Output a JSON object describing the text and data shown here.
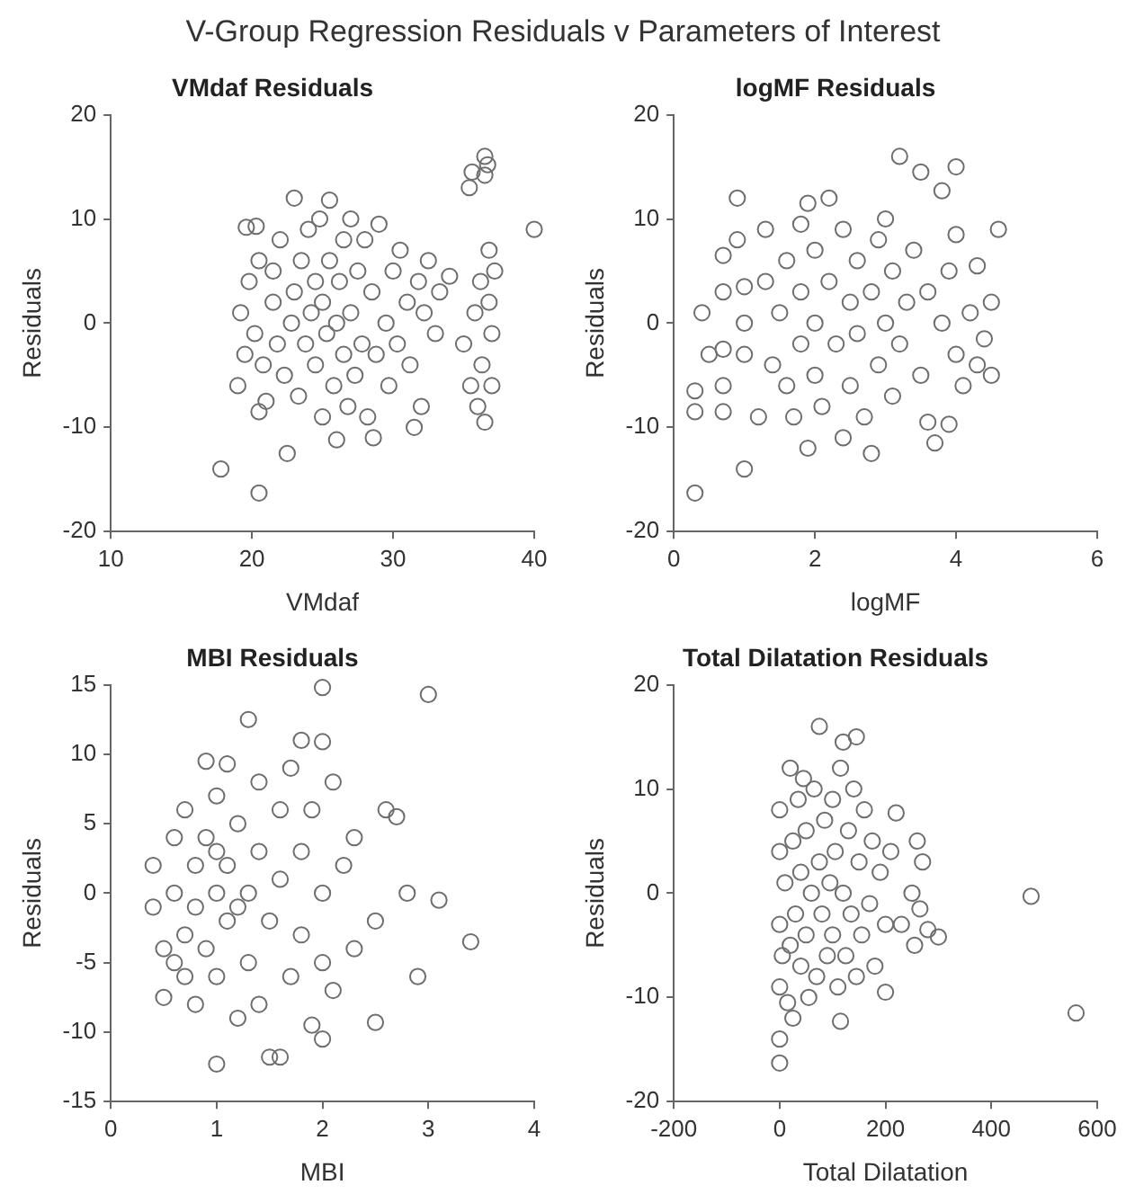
{
  "chart_data": [
    {
      "type": "scatter",
      "title": "VMdaf Residuals",
      "xlabel": "VMdaf",
      "ylabel": "Residuals",
      "annotations": [
        "V-Group Regression Residuals v Parameters of Interest"
      ],
      "color": "#6e6e6e",
      "marker": "circle",
      "xlim": [
        10,
        40
      ],
      "xticks": [
        10,
        20,
        30,
        40
      ],
      "ylim": [
        -20,
        20
      ],
      "yticks": [
        -20,
        -10,
        0,
        10,
        20
      ],
      "x": [
        17.8,
        20.5,
        19,
        19.5,
        19.2,
        19.8,
        19.6,
        20.3,
        20.5,
        20.2,
        20.8,
        21,
        20.5,
        21.5,
        21.8,
        21.5,
        22,
        22.3,
        22.5,
        22.8,
        23,
        23,
        23.3,
        23.5,
        23.8,
        24,
        24.2,
        24.5,
        24.5,
        24.8,
        25,
        25,
        25.3,
        25.5,
        25.5,
        25.8,
        26,
        26,
        26.2,
        26.5,
        26.5,
        26.8,
        27,
        27,
        27.3,
        27.5,
        27.8,
        28,
        28.2,
        28.5,
        28.6,
        28.8,
        29,
        29.5,
        29.7,
        30,
        30.3,
        30.5,
        31,
        31.2,
        31.5,
        31.8,
        32,
        32.2,
        32.5,
        33,
        33.3,
        34,
        35,
        35.4,
        35.6,
        35.5,
        35.8,
        36,
        36.2,
        36.3,
        36.5,
        36.5,
        36.5,
        36.7,
        36.8,
        36.8,
        37,
        37.2,
        37,
        40
      ],
      "values": [
        -14,
        -16.3,
        -6,
        -3,
        1,
        4,
        9.2,
        9.3,
        6,
        -1,
        -4,
        -7.5,
        -8.5,
        2,
        -2,
        5,
        8,
        -5,
        -12.5,
        0,
        3,
        12,
        -7,
        6,
        -2,
        9,
        1,
        -4,
        4,
        10,
        -9,
        2,
        -1,
        11.8,
        6,
        -6,
        -11.2,
        0,
        4,
        -3,
        8,
        -8,
        1,
        10,
        -5,
        5,
        -2,
        8,
        -9,
        3,
        -11,
        -3,
        9.5,
        0,
        -6,
        5,
        -2,
        7,
        2,
        -4,
        -10,
        4,
        -8,
        1,
        6,
        -1,
        3,
        4.5,
        -2,
        13,
        14.5,
        -6,
        1,
        -8,
        4,
        -4,
        16,
        14.2,
        -9.5,
        15.2,
        7,
        2,
        -1,
        5,
        -6,
        9
      ]
    },
    {
      "type": "scatter",
      "title": "logMF Residuals",
      "xlabel": "logMF",
      "ylabel": "Residuals",
      "color": "#6e6e6e",
      "marker": "circle",
      "xlim": [
        0,
        6
      ],
      "xticks": [
        0,
        2,
        4,
        6
      ],
      "ylim": [
        -20,
        20
      ],
      "yticks": [
        -20,
        -10,
        0,
        10,
        20
      ],
      "x": [
        0.3,
        0.3,
        0.3,
        0.5,
        0.4,
        0.7,
        0.7,
        0.7,
        0.7,
        0.7,
        0.9,
        0.9,
        1,
        1,
        1,
        1,
        1.2,
        1.3,
        1.3,
        1.4,
        1.5,
        1.6,
        1.6,
        1.7,
        1.8,
        1.8,
        1.8,
        1.9,
        1.9,
        2,
        2,
        2,
        2.1,
        2.2,
        2.2,
        2.3,
        2.4,
        2.4,
        2.5,
        2.5,
        2.6,
        2.6,
        2.7,
        2.8,
        2.8,
        2.9,
        2.9,
        3,
        3,
        3.1,
        3.1,
        3.2,
        3.2,
        3.3,
        3.4,
        3.5,
        3.5,
        3.6,
        3.6,
        3.7,
        3.8,
        3.8,
        3.9,
        3.9,
        4,
        4,
        4,
        4.1,
        4.2,
        4.3,
        4.3,
        4.5,
        4.4,
        4.6,
        4.5
      ],
      "values": [
        -16.3,
        -6.5,
        -8.5,
        -3,
        1,
        6.5,
        3,
        -2.5,
        -6,
        -8.5,
        8,
        12,
        -14,
        3.5,
        0,
        -3,
        -9,
        9,
        4,
        -4,
        1,
        6,
        -6,
        -9,
        9.5,
        3,
        -2,
        -12,
        11.5,
        7,
        0,
        -5,
        -8,
        12,
        4,
        -2,
        -11,
        9,
        2,
        -6,
        6,
        -1,
        -9,
        -12.5,
        3,
        8,
        -4,
        10,
        0,
        5,
        -7,
        16,
        -2,
        2,
        7,
        14.5,
        -5,
        -9.5,
        3,
        -11.5,
        12.7,
        0,
        -9.7,
        5,
        15,
        -3,
        8.5,
        -6,
        1,
        -4,
        5.5,
        2,
        -1.5,
        9,
        -5
      ]
    },
    {
      "type": "scatter",
      "title": "MBI Residuals",
      "xlabel": "MBI",
      "ylabel": "Residuals",
      "color": "#6e6e6e",
      "marker": "circle",
      "xlim": [
        0,
        4
      ],
      "xticks": [
        0,
        1,
        2,
        3,
        4
      ],
      "ylim": [
        -15,
        15
      ],
      "yticks": [
        -15,
        -10,
        -5,
        0,
        5,
        10,
        15
      ],
      "x": [
        0.4,
        0.4,
        0.5,
        0.5,
        0.6,
        0.6,
        0.7,
        0.7,
        0.7,
        0.8,
        0.8,
        0.8,
        0.9,
        0.9,
        0.9,
        1,
        1,
        1,
        1,
        1.1,
        1.1,
        1.1,
        1.2,
        1.2,
        1.3,
        1.3,
        1.3,
        1.4,
        1.4,
        1.4,
        1.5,
        1.5,
        1.6,
        1.6,
        1.6,
        1.7,
        1.7,
        1.8,
        1.8,
        1.8,
        1.9,
        1.9,
        2,
        2,
        2,
        2,
        2,
        2.1,
        2.1,
        2.2,
        2.3,
        2.3,
        2.5,
        2.5,
        2.6,
        2.7,
        2.8,
        2.9,
        3,
        3.1,
        3.4,
        1.2,
        0.6,
        1
      ],
      "values": [
        -1,
        2,
        -4,
        -7.5,
        4,
        0,
        -3,
        -6,
        6,
        2,
        -1,
        -8,
        9.5,
        4,
        -4,
        0,
        -12.3,
        7,
        -6,
        2,
        -2,
        9.3,
        5,
        -9,
        12.5,
        0,
        -5,
        3,
        -8,
        8,
        -11.8,
        -2,
        6,
        -11.8,
        1,
        -6,
        9,
        11,
        3,
        -3,
        -9.5,
        6,
        14.8,
        10.9,
        -10.5,
        0,
        -5,
        8,
        -7,
        2,
        4,
        -4,
        -9.3,
        -2,
        6,
        5.5,
        0,
        -6,
        14.3,
        -0.5,
        -3.5,
        -1,
        -5,
        3
      ]
    },
    {
      "type": "scatter",
      "title": "Total Dilatation Residuals",
      "xlabel": "Total Dilatation",
      "ylabel": "Residuals",
      "color": "#6e6e6e",
      "marker": "circle",
      "xlim": [
        -200,
        600
      ],
      "xticks": [
        -200,
        0,
        200,
        400,
        600
      ],
      "ylim": [
        -20,
        20
      ],
      "yticks": [
        -20,
        -10,
        0,
        10,
        20
      ],
      "x": [
        0,
        0,
        0,
        0,
        0,
        0,
        5,
        10,
        15,
        20,
        20,
        25,
        25,
        30,
        35,
        40,
        40,
        45,
        50,
        50,
        55,
        60,
        65,
        70,
        75,
        75,
        80,
        85,
        90,
        95,
        100,
        100,
        105,
        110,
        115,
        115,
        120,
        120,
        125,
        130,
        135,
        140,
        145,
        145,
        150,
        155,
        160,
        170,
        175,
        180,
        190,
        200,
        200,
        210,
        220,
        230,
        250,
        255,
        260,
        265,
        270,
        280,
        300,
        475,
        560
      ],
      "values": [
        -16.3,
        -14,
        8,
        4,
        -3,
        -9,
        -6,
        1,
        -10.5,
        12,
        -5,
        5,
        -12,
        -2,
        9,
        2,
        -7,
        11,
        -4,
        6,
        -10,
        0,
        10,
        -8,
        16,
        3,
        -2,
        7,
        -6,
        1,
        9,
        -4,
        4,
        -9,
        -12.3,
        12,
        14.5,
        0,
        -6,
        6,
        -2,
        10,
        15,
        -8,
        3,
        -4,
        8,
        -1,
        5,
        -7,
        2,
        -9.5,
        -3,
        4,
        7.7,
        -3,
        0,
        -5,
        5,
        -1.5,
        3,
        -3.5,
        -4.2,
        -0.3,
        -11.5
      ]
    }
  ]
}
